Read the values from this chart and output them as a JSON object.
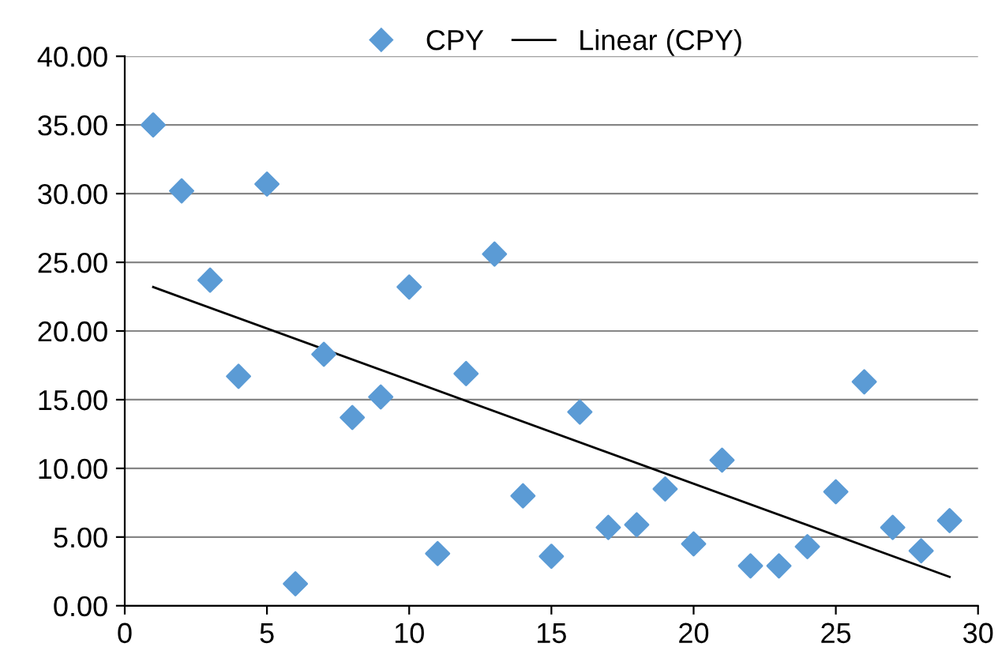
{
  "chart_data": {
    "type": "scatter",
    "xlim": [
      0,
      30
    ],
    "xticks": [
      0,
      5,
      10,
      15,
      20,
      25,
      30
    ],
    "ylim": [
      0,
      40
    ],
    "yticks": [
      {
        "value": 0,
        "label": "0.00"
      },
      {
        "value": 5,
        "label": "5.00"
      },
      {
        "value": 10,
        "label": "10.00"
      },
      {
        "value": 15,
        "label": "15.00"
      },
      {
        "value": 20,
        "label": "20.00"
      },
      {
        "value": 25,
        "label": "25.00"
      },
      {
        "value": 30,
        "label": "30.00"
      },
      {
        "value": 35,
        "label": "35.00"
      },
      {
        "value": 40,
        "label": "40.00"
      }
    ],
    "grid": "y",
    "legend": "top",
    "series": [
      {
        "name": "CPY",
        "marker": "diamond",
        "color": "#5b9bd5",
        "x": [
          1,
          2,
          3,
          4,
          5,
          6,
          7,
          8,
          9,
          10,
          11,
          12,
          13,
          14,
          15,
          16,
          17,
          18,
          19,
          20,
          21,
          22,
          23,
          24,
          25,
          26,
          27,
          28,
          29
        ],
        "values": [
          35.0,
          30.2,
          23.7,
          16.7,
          30.7,
          1.6,
          18.3,
          13.7,
          15.2,
          23.2,
          3.8,
          16.9,
          25.6,
          8.0,
          3.6,
          14.1,
          5.7,
          5.9,
          8.5,
          4.5,
          10.6,
          2.9,
          2.9,
          4.3,
          8.3,
          16.3,
          5.7,
          4.0,
          6.2
        ]
      },
      {
        "name": "Linear (CPY)",
        "type": "line",
        "color": "#000000",
        "line_style": "solid",
        "x": [
          1,
          29
        ],
        "values": [
          23.2,
          2.1
        ]
      }
    ]
  }
}
